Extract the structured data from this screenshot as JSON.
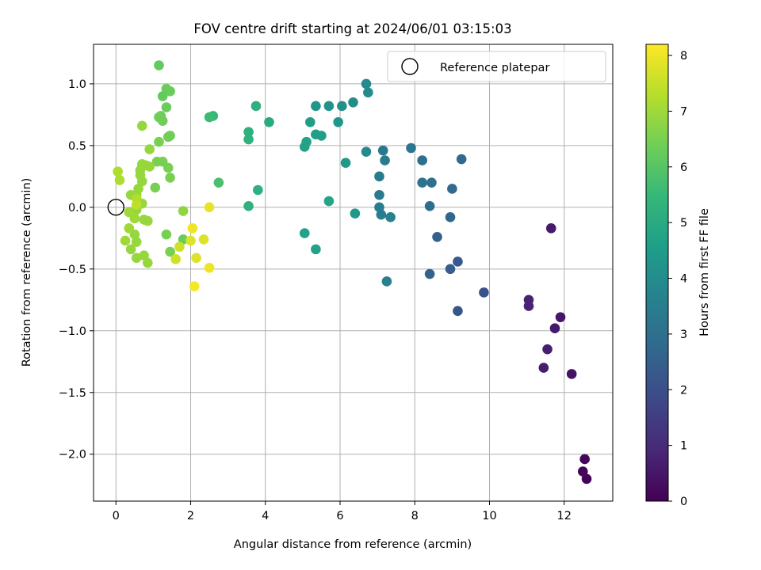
{
  "chart_data": {
    "type": "scatter",
    "title": "FOV centre drift starting at 2024/06/01 03:15:03",
    "xlabel": "Angular distance from reference (arcmin)",
    "ylabel": "Rotation from reference (arcmin)",
    "xlim": [
      -0.6,
      13.3
    ],
    "ylim": [
      -2.38,
      1.32
    ],
    "xticks": [
      0,
      2,
      4,
      6,
      8,
      10,
      12
    ],
    "xtick_labels": [
      "0",
      "2",
      "4",
      "6",
      "8",
      "10",
      "12"
    ],
    "yticks": [
      1.0,
      0.5,
      0.0,
      -0.5,
      -1.0,
      -1.5,
      -2.0
    ],
    "ytick_labels": [
      "1.0",
      "0.5",
      "0.0",
      "−0.5",
      "−1.0",
      "−1.5",
      "−2.0"
    ],
    "grid": true,
    "legend": {
      "placement": "top-right",
      "entries": [
        "Reference platepar"
      ]
    },
    "reference_point": {
      "x": 0,
      "y": 0,
      "name": "Reference platepar"
    },
    "colorbar": {
      "label": "Hours from first FF file",
      "colormap": "viridis",
      "range": [
        0,
        8.2
      ],
      "ticks": [
        0,
        1,
        2,
        3,
        4,
        5,
        6,
        7,
        8
      ],
      "tick_labels": [
        "0",
        "1",
        "2",
        "3",
        "4",
        "5",
        "6",
        "7",
        "8"
      ],
      "stops": [
        "#440154",
        "#482878",
        "#3e4989",
        "#31688e",
        "#26828e",
        "#1f9e89",
        "#35b779",
        "#6ece58",
        "#b5de2b",
        "#fde725"
      ]
    },
    "points": [
      {
        "x": 12.6,
        "y": -2.2,
        "c": 0.05
      },
      {
        "x": 12.5,
        "y": -2.14,
        "c": 0.1
      },
      {
        "x": 12.55,
        "y": -2.04,
        "c": 0.15
      },
      {
        "x": 12.2,
        "y": -1.35,
        "c": 0.4
      },
      {
        "x": 11.9,
        "y": -0.89,
        "c": 0.5
      },
      {
        "x": 11.75,
        "y": -0.98,
        "c": 0.55
      },
      {
        "x": 11.65,
        "y": -0.17,
        "c": 0.6
      },
      {
        "x": 11.45,
        "y": -1.3,
        "c": 0.65
      },
      {
        "x": 11.55,
        "y": -1.15,
        "c": 0.7
      },
      {
        "x": 11.05,
        "y": -0.75,
        "c": 0.8
      },
      {
        "x": 11.05,
        "y": -0.8,
        "c": 0.85
      },
      {
        "x": 9.85,
        "y": -0.69,
        "c": 2.1
      },
      {
        "x": 9.15,
        "y": -0.84,
        "c": 2.2
      },
      {
        "x": 9.15,
        "y": -0.44,
        "c": 2.3
      },
      {
        "x": 8.95,
        "y": -0.5,
        "c": 2.4
      },
      {
        "x": 8.6,
        "y": -0.24,
        "c": 2.5
      },
      {
        "x": 8.4,
        "y": -0.54,
        "c": 2.6
      },
      {
        "x": 8.95,
        "y": -0.08,
        "c": 2.7
      },
      {
        "x": 9.25,
        "y": 0.39,
        "c": 2.8
      },
      {
        "x": 9.0,
        "y": 0.15,
        "c": 2.8
      },
      {
        "x": 8.4,
        "y": 0.01,
        "c": 2.9
      },
      {
        "x": 8.2,
        "y": 0.38,
        "c": 3.0
      },
      {
        "x": 8.45,
        "y": 0.2,
        "c": 3.0
      },
      {
        "x": 8.2,
        "y": 0.2,
        "c": 3.1
      },
      {
        "x": 7.9,
        "y": 0.48,
        "c": 3.2
      },
      {
        "x": 7.15,
        "y": 0.46,
        "c": 3.3
      },
      {
        "x": 7.2,
        "y": 0.38,
        "c": 3.4
      },
      {
        "x": 7.05,
        "y": 0.25,
        "c": 3.4
      },
      {
        "x": 7.05,
        "y": 0.1,
        "c": 3.4
      },
      {
        "x": 7.05,
        "y": 0.0,
        "c": 3.5
      },
      {
        "x": 7.1,
        "y": -0.06,
        "c": 3.5
      },
      {
        "x": 7.35,
        "y": -0.08,
        "c": 3.6
      },
      {
        "x": 7.25,
        "y": -0.6,
        "c": 3.6
      },
      {
        "x": 6.7,
        "y": 1.0,
        "c": 3.9
      },
      {
        "x": 6.75,
        "y": 0.93,
        "c": 3.95
      },
      {
        "x": 6.7,
        "y": 0.45,
        "c": 3.9
      },
      {
        "x": 6.35,
        "y": 0.85,
        "c": 4.0
      },
      {
        "x": 6.05,
        "y": 0.82,
        "c": 4.1
      },
      {
        "x": 5.7,
        "y": 0.82,
        "c": 4.2
      },
      {
        "x": 5.35,
        "y": 0.82,
        "c": 4.3
      },
      {
        "x": 5.95,
        "y": 0.69,
        "c": 4.3
      },
      {
        "x": 6.15,
        "y": 0.36,
        "c": 4.4
      },
      {
        "x": 6.4,
        "y": -0.05,
        "c": 4.4
      },
      {
        "x": 5.2,
        "y": 0.69,
        "c": 4.6
      },
      {
        "x": 5.35,
        "y": 0.59,
        "c": 4.6
      },
      {
        "x": 5.5,
        "y": 0.58,
        "c": 4.6
      },
      {
        "x": 5.1,
        "y": 0.53,
        "c": 4.7
      },
      {
        "x": 5.05,
        "y": 0.49,
        "c": 4.7
      },
      {
        "x": 5.05,
        "y": -0.21,
        "c": 4.7
      },
      {
        "x": 5.35,
        "y": -0.34,
        "c": 4.7
      },
      {
        "x": 5.7,
        "y": 0.05,
        "c": 4.8
      },
      {
        "x": 4.1,
        "y": 0.69,
        "c": 5.0
      },
      {
        "x": 3.75,
        "y": 0.82,
        "c": 5.2
      },
      {
        "x": 3.55,
        "y": 0.61,
        "c": 5.2
      },
      {
        "x": 3.55,
        "y": 0.55,
        "c": 5.2
      },
      {
        "x": 3.8,
        "y": 0.14,
        "c": 5.2
      },
      {
        "x": 3.55,
        "y": 0.01,
        "c": 5.2
      },
      {
        "x": 2.6,
        "y": 0.74,
        "c": 5.5
      },
      {
        "x": 2.5,
        "y": 0.73,
        "c": 5.6
      },
      {
        "x": 2.75,
        "y": 0.2,
        "c": 5.8
      },
      {
        "x": 1.15,
        "y": 1.15,
        "c": 6.2
      },
      {
        "x": 1.35,
        "y": 0.96,
        "c": 6.3
      },
      {
        "x": 1.45,
        "y": 0.94,
        "c": 6.3
      },
      {
        "x": 1.25,
        "y": 0.9,
        "c": 6.2
      },
      {
        "x": 1.35,
        "y": 0.81,
        "c": 6.3
      },
      {
        "x": 1.2,
        "y": 0.74,
        "c": 6.3
      },
      {
        "x": 1.15,
        "y": 0.73,
        "c": 6.4
      },
      {
        "x": 1.25,
        "y": 0.7,
        "c": 6.4
      },
      {
        "x": 1.45,
        "y": 0.58,
        "c": 6.4
      },
      {
        "x": 1.4,
        "y": 0.57,
        "c": 6.4
      },
      {
        "x": 1.15,
        "y": 0.53,
        "c": 6.5
      },
      {
        "x": 1.1,
        "y": 0.37,
        "c": 6.5
      },
      {
        "x": 1.25,
        "y": 0.37,
        "c": 6.5
      },
      {
        "x": 1.4,
        "y": 0.32,
        "c": 6.5
      },
      {
        "x": 1.45,
        "y": 0.24,
        "c": 6.5
      },
      {
        "x": 1.05,
        "y": 0.16,
        "c": 6.5
      },
      {
        "x": 1.35,
        "y": -0.22,
        "c": 6.5
      },
      {
        "x": 1.45,
        "y": -0.36,
        "c": 6.5
      },
      {
        "x": 1.8,
        "y": -0.26,
        "c": 6.3
      },
      {
        "x": 1.8,
        "y": -0.03,
        "c": 6.8
      },
      {
        "x": 0.7,
        "y": 0.66,
        "c": 6.9
      },
      {
        "x": 0.9,
        "y": 0.47,
        "c": 6.9
      },
      {
        "x": 0.7,
        "y": 0.35,
        "c": 6.9
      },
      {
        "x": 0.9,
        "y": 0.33,
        "c": 6.9
      },
      {
        "x": 0.8,
        "y": 0.34,
        "c": 6.9
      },
      {
        "x": 0.65,
        "y": 0.3,
        "c": 6.9
      },
      {
        "x": 0.65,
        "y": 0.26,
        "c": 6.9
      },
      {
        "x": 0.7,
        "y": 0.21,
        "c": 6.9
      },
      {
        "x": 0.6,
        "y": 0.15,
        "c": 6.9
      },
      {
        "x": 0.55,
        "y": 0.1,
        "c": 6.9
      },
      {
        "x": 0.7,
        "y": 0.03,
        "c": 6.9
      },
      {
        "x": 0.4,
        "y": 0.1,
        "c": 6.9
      },
      {
        "x": 0.55,
        "y": -0.02,
        "c": 6.9
      },
      {
        "x": 0.75,
        "y": -0.1,
        "c": 6.9
      },
      {
        "x": 0.85,
        "y": -0.11,
        "c": 6.9
      },
      {
        "x": 0.5,
        "y": -0.22,
        "c": 6.9
      },
      {
        "x": 0.55,
        "y": -0.28,
        "c": 6.9
      },
      {
        "x": 0.4,
        "y": -0.34,
        "c": 6.9
      },
      {
        "x": 0.55,
        "y": -0.41,
        "c": 6.9
      },
      {
        "x": 0.75,
        "y": -0.39,
        "c": 6.9
      },
      {
        "x": 0.85,
        "y": -0.45,
        "c": 6.9
      },
      {
        "x": 0.5,
        "y": -0.09,
        "c": 7.0
      },
      {
        "x": 0.35,
        "y": -0.17,
        "c": 7.0
      },
      {
        "x": 0.25,
        "y": -0.27,
        "c": 7.0
      },
      {
        "x": 0.35,
        "y": -0.04,
        "c": 7.0
      },
      {
        "x": 0.55,
        "y": 0.07,
        "c": 7.2
      },
      {
        "x": 0.1,
        "y": 0.22,
        "c": 7.2
      },
      {
        "x": 0.05,
        "y": 0.29,
        "c": 7.2
      },
      {
        "x": 0.55,
        "y": 0.02,
        "c": 7.4
      },
      {
        "x": 1.6,
        "y": -0.42,
        "c": 7.6
      },
      {
        "x": 1.7,
        "y": -0.32,
        "c": 7.6
      },
      {
        "x": 2.0,
        "y": -0.27,
        "c": 7.8
      },
      {
        "x": 2.35,
        "y": -0.26,
        "c": 7.8
      },
      {
        "x": 2.15,
        "y": -0.41,
        "c": 7.8
      },
      {
        "x": 2.5,
        "y": 0.0,
        "c": 7.9
      },
      {
        "x": 2.05,
        "y": -0.17,
        "c": 8.0
      },
      {
        "x": 2.5,
        "y": -0.49,
        "c": 8.0
      },
      {
        "x": 2.1,
        "y": -0.64,
        "c": 8.1
      }
    ]
  }
}
